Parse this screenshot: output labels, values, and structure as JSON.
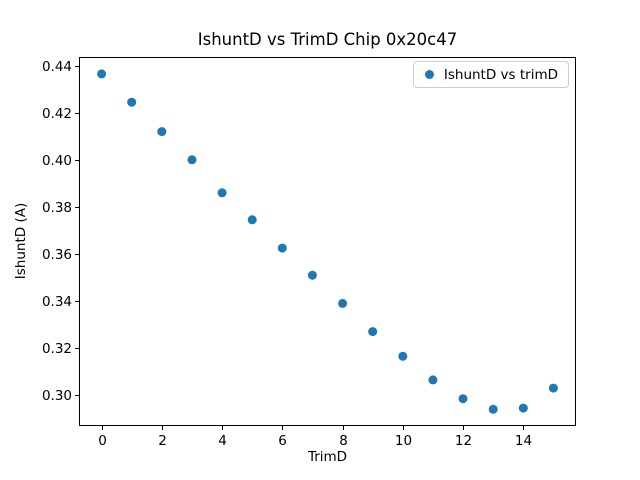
{
  "chart_data": {
    "type": "scatter",
    "title": "IshuntD vs TrimD Chip 0x20c47",
    "xlabel": "TrimD",
    "ylabel": "IshuntD (A)",
    "legend": [
      "IshuntD vs trimD"
    ],
    "legend_position": "upper right",
    "marker_color": "#1f77b4",
    "background_color": "#ffffff",
    "grid": false,
    "x": [
      0,
      1,
      2,
      3,
      4,
      5,
      6,
      7,
      8,
      9,
      10,
      11,
      12,
      13,
      14,
      15
    ],
    "y": [
      0.4365,
      0.4245,
      0.412,
      0.4,
      0.386,
      0.3745,
      0.3625,
      0.351,
      0.339,
      0.327,
      0.3165,
      0.3065,
      0.2985,
      0.294,
      0.2945,
      0.303
    ],
    "xlim": [
      -0.75,
      15.75
    ],
    "ylim": [
      0.2869,
      0.4437
    ],
    "xticks": [
      0,
      2,
      4,
      6,
      8,
      10,
      12,
      14
    ],
    "yticks": [
      0.3,
      0.32,
      0.34,
      0.36,
      0.38,
      0.4,
      0.42,
      0.44
    ],
    "ytick_decimals": 2
  }
}
